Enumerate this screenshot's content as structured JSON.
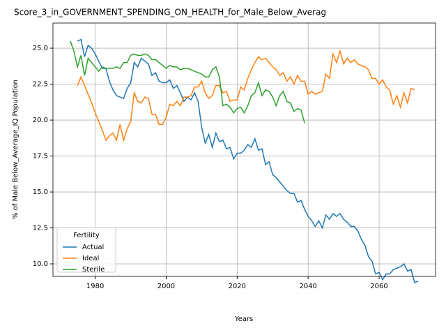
{
  "chart_data": {
    "type": "line",
    "title": "Score_3_in_GOVERNMENT_SPENDING_ON_HEALTH_for_Male_Below_Averag",
    "x_label": "Years",
    "y_label": "% of Male Below_Average_IQ Population",
    "legend_title": "Fertility",
    "legend_loc": "lower left",
    "grid": true,
    "x": [
      1973,
      1974,
      1975,
      1976,
      1977,
      1978,
      1979,
      1980,
      1981,
      1982,
      1983,
      1984,
      1985,
      1986,
      1987,
      1988,
      1989,
      1990,
      1991,
      1992,
      1993,
      1994,
      1995,
      1996,
      1997,
      1998,
      1999,
      2000,
      2001,
      2002,
      2003,
      2004,
      2005,
      2006,
      2007,
      2008,
      2009,
      2010,
      2011,
      2012,
      2013,
      2014,
      2015,
      2016,
      2017,
      2018,
      2019,
      2020,
      2021,
      2022,
      2023,
      2024,
      2025,
      2026,
      2027,
      2028,
      2029,
      2030,
      2031,
      2032,
      2033,
      2034,
      2035,
      2036,
      2037,
      2038,
      2039,
      2040,
      2041,
      2042,
      2043,
      2044,
      2045,
      2046,
      2047,
      2048,
      2049,
      2050,
      2051,
      2052,
      2053,
      2054,
      2055,
      2056,
      2057,
      2058,
      2059,
      2060,
      2061,
      2062,
      2063,
      2064,
      2065,
      2066,
      2067,
      2068,
      2069,
      2070,
      2071
    ],
    "series": [
      {
        "name": "Actual",
        "color": "#1f77b4",
        "values": [
          null,
          null,
          25.5,
          25.6,
          24.4,
          25.2,
          25.0,
          24.6,
          24.1,
          23.6,
          23.6,
          22.7,
          22.1,
          21.7,
          21.6,
          21.5,
          22.2,
          22.6,
          24.0,
          23.7,
          24.3,
          24.1,
          23.9,
          23.1,
          23.3,
          22.7,
          22.6,
          22.6,
          22.8,
          22.2,
          22.4,
          21.9,
          21.3,
          21.6,
          21.4,
          21.9,
          21.3,
          19.5,
          18.4,
          19.0,
          18.1,
          19.1,
          18.5,
          18.6,
          18.0,
          18.1,
          17.3,
          17.7,
          17.7,
          17.9,
          18.3,
          18.1,
          18.7,
          17.9,
          18.0,
          16.9,
          17.1,
          16.2,
          16.0,
          15.7,
          15.4,
          15.1,
          14.9,
          14.9,
          14.3,
          14.4,
          13.8,
          13.3,
          13.0,
          12.6,
          13.0,
          12.5,
          13.4,
          13.1,
          13.5,
          13.3,
          13.5,
          13.1,
          12.9,
          12.6,
          12.6,
          12.3,
          11.7,
          11.3,
          10.5,
          10.2,
          9.3,
          9.4,
          8.9,
          9.3,
          9.3,
          9.6,
          9.7,
          9.8,
          10.0,
          9.5,
          9.6,
          8.7,
          8.8
        ]
      },
      {
        "name": "Ideal",
        "color": "#ff7f0e",
        "values": [
          null,
          null,
          22.4,
          23.0,
          22.4,
          21.8,
          21.2,
          20.5,
          19.9,
          19.3,
          18.6,
          18.9,
          19.1,
          18.6,
          19.7,
          18.6,
          19.4,
          19.9,
          21.9,
          21.3,
          21.2,
          21.6,
          21.5,
          20.4,
          20.4,
          19.7,
          19.7,
          20.2,
          21.1,
          21.0,
          21.3,
          21.0,
          21.6,
          21.6,
          21.7,
          22.3,
          22.3,
          22.7,
          21.9,
          21.5,
          21.7,
          22.4,
          22.4,
          21.9,
          22.0,
          21.3,
          21.4,
          21.4,
          22.3,
          22.1,
          22.9,
          23.5,
          24.0,
          24.4,
          24.2,
          24.3,
          24.0,
          23.7,
          23.5,
          23.1,
          23.3,
          22.7,
          23.0,
          22.5,
          23.1,
          22.7,
          22.7,
          21.8,
          22.0,
          21.8,
          21.9,
          22.0,
          23.2,
          22.9,
          24.6,
          24.0,
          24.8,
          23.9,
          24.3,
          24.0,
          24.2,
          23.9,
          23.8,
          23.7,
          23.5,
          22.9,
          22.9,
          22.5,
          22.8,
          22.3,
          22.1,
          21.1,
          21.7,
          20.9,
          21.9,
          21.2,
          22.2,
          22.1,
          null
        ]
      },
      {
        "name": "Sterile",
        "color": "#2ca02c",
        "values": [
          25.5,
          24.8,
          23.7,
          24.5,
          23.1,
          24.3,
          24.0,
          23.7,
          23.4,
          23.7,
          23.6,
          23.6,
          23.6,
          23.7,
          23.6,
          24.0,
          24.0,
          24.5,
          24.6,
          24.5,
          24.5,
          24.6,
          24.5,
          24.2,
          24.2,
          24.0,
          23.8,
          23.6,
          23.8,
          23.7,
          23.7,
          23.5,
          23.6,
          23.6,
          23.5,
          23.4,
          23.3,
          23.2,
          23.0,
          23.0,
          23.5,
          23.7,
          23.0,
          21.0,
          21.1,
          20.9,
          20.5,
          20.8,
          20.9,
          20.5,
          21.0,
          21.7,
          21.9,
          22.6,
          21.7,
          22.1,
          22.0,
          21.6,
          21.0,
          21.7,
          22.0,
          21.3,
          21.2,
          20.6,
          20.8,
          20.7,
          19.8,
          null,
          null,
          null,
          null,
          null,
          null,
          null,
          null,
          null,
          null,
          null,
          null,
          null,
          null,
          null,
          null,
          null,
          null,
          null,
          null,
          null,
          null,
          null,
          null,
          null,
          null,
          null,
          null,
          null,
          null,
          null,
          null
        ]
      }
    ],
    "xlim": [
      1968.1,
      2075.9
    ],
    "xticks": [
      1980,
      2000,
      2020,
      2040,
      2060
    ],
    "ylim": [
      9.13,
      26.75
    ],
    "yticks": [
      {
        "value": 10,
        "label": "10.0"
      },
      {
        "value": 12.5,
        "label": "12.5"
      },
      {
        "value": 15,
        "label": "15.0"
      },
      {
        "value": 17.5,
        "label": "17.5"
      },
      {
        "value": 20,
        "label": "20.0"
      },
      {
        "value": 22.5,
        "label": "22.5"
      },
      {
        "value": 25,
        "label": "25.0"
      }
    ]
  }
}
